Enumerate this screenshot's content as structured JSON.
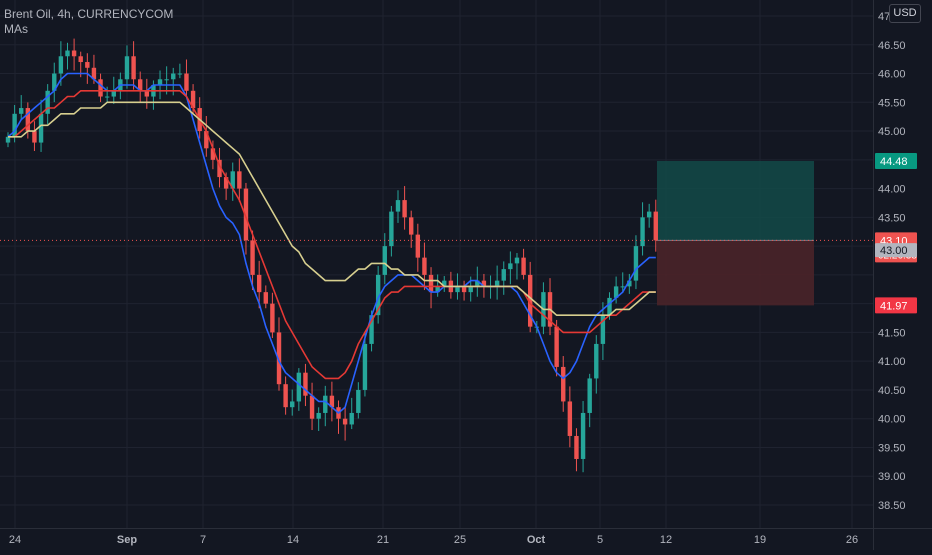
{
  "header": {
    "title": "Brent Oil, 4h, CURRENCYCOM",
    "indicator": "MAs",
    "currency": "USD"
  },
  "colors": {
    "background": "#131722",
    "grid": "#1f2330",
    "up": "#26a69a",
    "down": "#ef5350",
    "ma_fast": "#2962ff",
    "ma_mid": "#e53935",
    "ma_slow": "#d7cf8f",
    "profit_zone": "#134a48",
    "loss_zone": "#4a2429"
  },
  "chart_data": {
    "type": "candlestick",
    "timeframe": "4h",
    "x_ticks": [
      "24",
      "Sep",
      "7",
      "14",
      "21",
      "25",
      "Oct",
      "5",
      "12",
      "19",
      "26"
    ],
    "y_ticks": [
      "47.00",
      "46.50",
      "46.00",
      "45.50",
      "45.00",
      "44.50",
      "44.00",
      "43.50",
      "43.00",
      "42.50",
      "42.00",
      "41.50",
      "41.00",
      "40.50",
      "40.00",
      "39.50",
      "39.00",
      "38.50"
    ],
    "ylim": [
      38.2,
      47.2
    ],
    "grid": true,
    "close_series": [
      44.9,
      45.3,
      45.4,
      45.0,
      44.8,
      45.3,
      45.7,
      46.0,
      46.3,
      46.4,
      46.3,
      46.2,
      46.1,
      45.9,
      45.6,
      45.6,
      45.7,
      45.9,
      46.3,
      45.9,
      45.7,
      45.6,
      45.8,
      45.9,
      45.9,
      46.0,
      46.0,
      45.7,
      45.4,
      45.0,
      44.7,
      44.5,
      44.2,
      44.0,
      44.3,
      44.0,
      43.1,
      42.5,
      42.2,
      42.0,
      41.5,
      40.6,
      40.2,
      40.3,
      40.8,
      40.4,
      40.0,
      40.1,
      40.4,
      40.2,
      40.0,
      39.9,
      40.1,
      40.5,
      41.3,
      41.8,
      42.5,
      43.0,
      43.6,
      43.8,
      43.5,
      43.2,
      42.8,
      42.5,
      42.2,
      42.3,
      42.4,
      42.2,
      42.3,
      42.2,
      42.3,
      42.4,
      42.3,
      42.3,
      42.4,
      42.6,
      42.7,
      42.8,
      42.5,
      41.6,
      41.6,
      42.2,
      41.6,
      40.9,
      40.3,
      39.7,
      39.3,
      40.1,
      40.7,
      41.3,
      41.8,
      42.1,
      42.3,
      42.3,
      42.4,
      43.0,
      43.5,
      43.6,
      43.1
    ],
    "series": [
      {
        "values": [
          44.9,
          45.0,
          45.2,
          45.3,
          45.4,
          45.5,
          45.6,
          45.7,
          45.9,
          46.0,
          46.0,
          46.0,
          46.0,
          45.9,
          45.8,
          45.7,
          45.7,
          45.8,
          45.8,
          45.8,
          45.7,
          45.7,
          45.8,
          45.8,
          45.8,
          45.8,
          45.8,
          45.6,
          45.2,
          44.8,
          44.4,
          44.0,
          43.7,
          43.5,
          43.4,
          43.2,
          42.7,
          42.3,
          42.0,
          41.6,
          41.3,
          41.0,
          40.8,
          40.7,
          40.6,
          40.5,
          40.4,
          40.3,
          40.3,
          40.2,
          40.1,
          40.2,
          40.6,
          41.0,
          41.4,
          41.8,
          42.1,
          42.3,
          42.4,
          42.5,
          42.5,
          42.5,
          42.4,
          42.3,
          42.2,
          42.2,
          42.3,
          42.3,
          42.3,
          42.3,
          42.4,
          42.4,
          42.3,
          42.3,
          42.3,
          42.3,
          42.3,
          42.2,
          42.0,
          41.8,
          41.6,
          41.3,
          41.0,
          40.8,
          40.7,
          40.8,
          41.0,
          41.3,
          41.6,
          41.8,
          41.9,
          42.0,
          42.1,
          42.2,
          42.4,
          42.6,
          42.7,
          42.8,
          42.8
        ]
      },
      {
        "values": [
          44.9,
          44.9,
          45.0,
          45.1,
          45.2,
          45.3,
          45.4,
          45.4,
          45.5,
          45.6,
          45.6,
          45.7,
          45.7,
          45.7,
          45.7,
          45.7,
          45.7,
          45.7,
          45.7,
          45.7,
          45.7,
          45.7,
          45.7,
          45.7,
          45.7,
          45.7,
          45.7,
          45.6,
          45.4,
          45.2,
          45.0,
          44.7,
          44.4,
          44.2,
          44.0,
          43.8,
          43.5,
          43.2,
          42.9,
          42.6,
          42.3,
          42.0,
          41.7,
          41.5,
          41.3,
          41.1,
          40.9,
          40.8,
          40.7,
          40.7,
          40.7,
          40.8,
          41.0,
          41.3,
          41.5,
          41.7,
          41.9,
          42.1,
          42.2,
          42.2,
          42.3,
          42.3,
          42.3,
          42.3,
          42.3,
          42.3,
          42.3,
          42.3,
          42.3,
          42.3,
          42.3,
          42.3,
          42.3,
          42.3,
          42.3,
          42.3,
          42.3,
          42.3,
          42.2,
          42.0,
          41.9,
          41.8,
          41.7,
          41.6,
          41.5,
          41.5,
          41.5,
          41.5,
          41.5,
          41.6,
          41.7,
          41.8,
          41.8,
          41.9,
          42.0,
          42.1,
          42.2,
          42.2,
          42.2
        ]
      },
      {
        "values": [
          44.9,
          44.9,
          44.9,
          45.0,
          45.0,
          45.1,
          45.1,
          45.2,
          45.3,
          45.3,
          45.3,
          45.4,
          45.4,
          45.4,
          45.4,
          45.5,
          45.5,
          45.5,
          45.5,
          45.5,
          45.5,
          45.5,
          45.5,
          45.5,
          45.5,
          45.5,
          45.5,
          45.4,
          45.3,
          45.2,
          45.1,
          45.0,
          44.9,
          44.8,
          44.7,
          44.6,
          44.4,
          44.2,
          44.0,
          43.8,
          43.6,
          43.4,
          43.2,
          43.0,
          42.9,
          42.7,
          42.6,
          42.5,
          42.4,
          42.4,
          42.4,
          42.4,
          42.5,
          42.6,
          42.6,
          42.7,
          42.7,
          42.7,
          42.6,
          42.6,
          42.5,
          42.5,
          42.5,
          42.4,
          42.4,
          42.4,
          42.3,
          42.3,
          42.3,
          42.3,
          42.3,
          42.3,
          42.3,
          42.3,
          42.3,
          42.3,
          42.3,
          42.3,
          42.2,
          42.1,
          42.0,
          41.9,
          41.9,
          41.8,
          41.8,
          41.8,
          41.8,
          41.8,
          41.8,
          41.8,
          41.8,
          41.8,
          41.9,
          41.9,
          41.9,
          42.0,
          42.1,
          42.2,
          42.2
        ]
      }
    ],
    "position": {
      "target": 44.48,
      "entry": 43.1,
      "stop": 41.97
    },
    "price_labels": {
      "target": "44.48",
      "last": "43.10",
      "countdown": "02:26:38",
      "ma": "43.00",
      "stop": "41.97"
    }
  }
}
